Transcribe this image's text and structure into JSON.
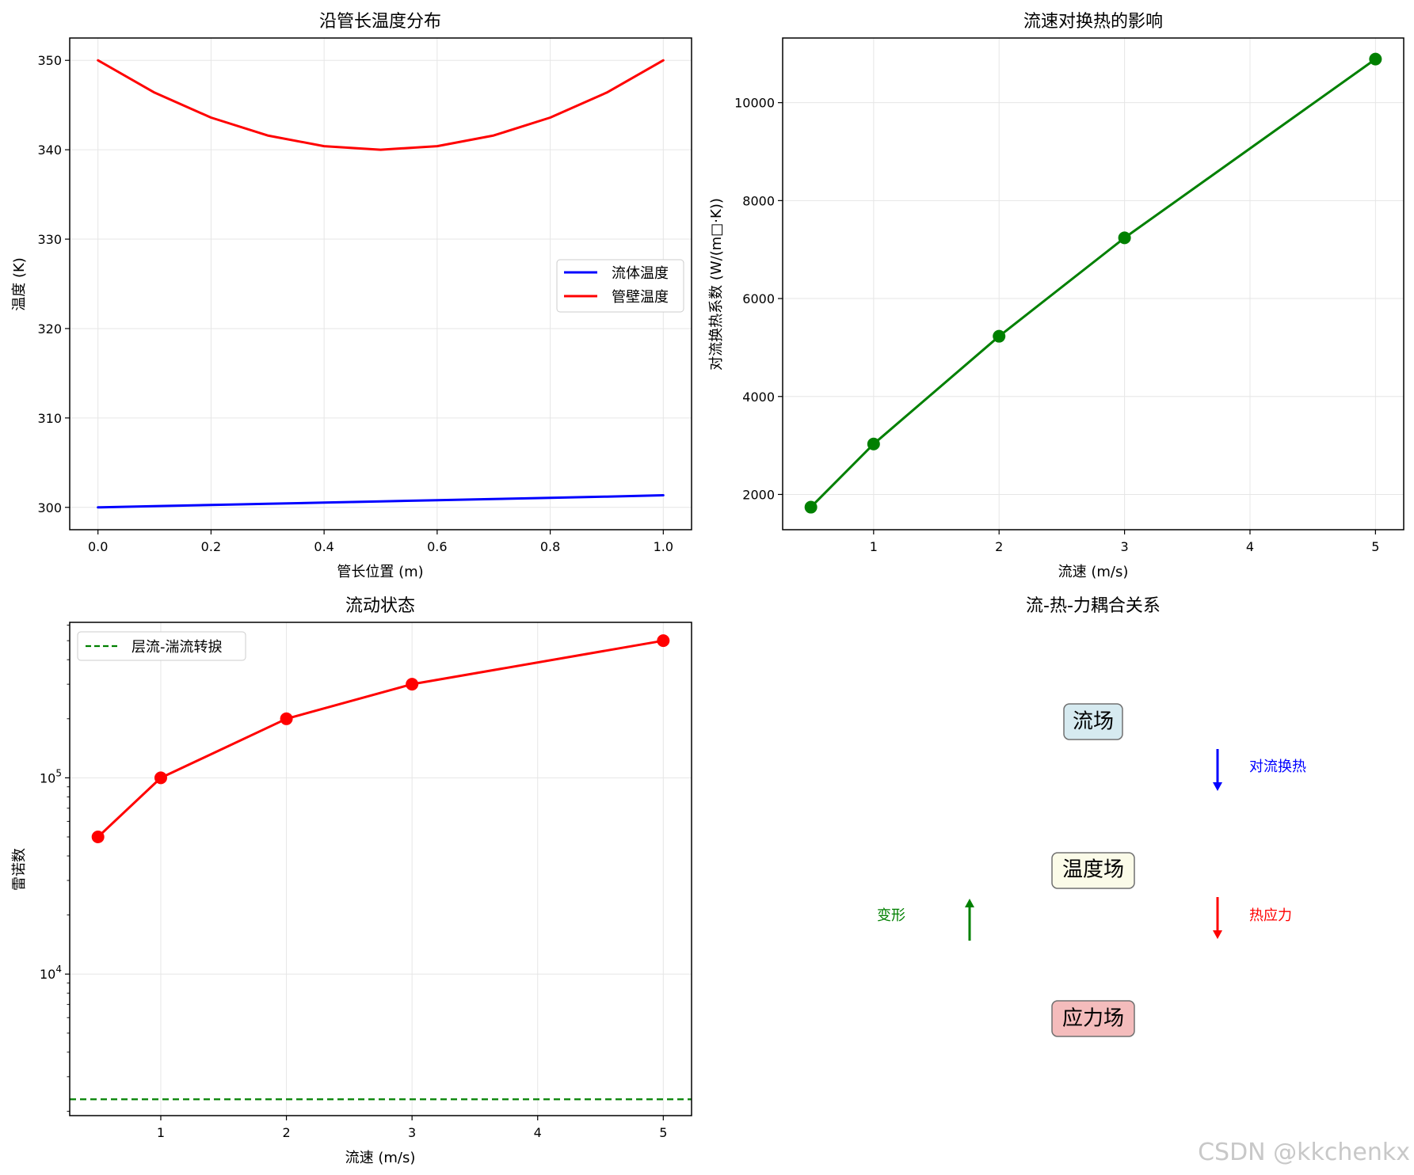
{
  "chart_data": [
    {
      "type": "line",
      "title": "沿管长温度分布",
      "xlabel": "管长位置 (m)",
      "ylabel": "温度 (K)",
      "xlim": [
        -0.05,
        1.05
      ],
      "ylim": [
        297.5,
        352.5
      ],
      "xticks": [
        0.0,
        0.2,
        0.4,
        0.6,
        0.8,
        1.0
      ],
      "xtick_labels": [
        "0.0",
        "0.2",
        "0.4",
        "0.6",
        "0.8",
        "1.0"
      ],
      "yticks": [
        300,
        310,
        320,
        330,
        340,
        350
      ],
      "grid": true,
      "legend": "center-right",
      "series": [
        {
          "name": "流体温度",
          "color": "#0000ff",
          "x": [
            0.0,
            0.1,
            0.2,
            0.3,
            0.4,
            0.5,
            0.6,
            0.7,
            0.8,
            0.9,
            1.0
          ],
          "y": [
            300.0,
            300.13,
            300.26,
            300.4,
            300.53,
            300.67,
            300.8,
            300.93,
            301.07,
            301.2,
            301.35
          ]
        },
        {
          "name": "管壁温度",
          "color": "#ff0000",
          "x": [
            0.0,
            0.1,
            0.2,
            0.3,
            0.4,
            0.5,
            0.6,
            0.7,
            0.8,
            0.9,
            1.0
          ],
          "y": [
            350.0,
            346.4,
            343.6,
            341.6,
            340.4,
            340.0,
            340.4,
            341.6,
            343.6,
            346.4,
            350.0
          ]
        }
      ]
    },
    {
      "type": "line",
      "title": "流速对换热的影响",
      "xlabel": "流速 (m/s)",
      "ylabel": "对流换热系数 (W/(m□·K))",
      "xlim": [
        0.275,
        5.225
      ],
      "ylim": [
        1280,
        11320
      ],
      "xticks": [
        1,
        2,
        3,
        4,
        5
      ],
      "yticks": [
        2000,
        4000,
        6000,
        8000,
        10000
      ],
      "grid": true,
      "series": [
        {
          "color": "#008000",
          "x": [
            0.5,
            1,
            2,
            3,
            5
          ],
          "y": [
            1740,
            3030,
            5230,
            7240,
            10890
          ]
        }
      ]
    },
    {
      "type": "line",
      "title": "流动状态",
      "xlabel": "流速 (m/s)",
      "ylabel": "雷诺数",
      "yscale": "log",
      "xlim": [
        0.275,
        5.225
      ],
      "ylim": [
        1900,
        620000
      ],
      "xticks": [
        1,
        2,
        3,
        4,
        5
      ],
      "yticks": [
        10000,
        100000
      ],
      "ytick_labels": [
        "10^4",
        "10^5"
      ],
      "grid": true,
      "legend": "top-left",
      "series": [
        {
          "color": "#ff0000",
          "x": [
            0.5,
            1,
            2,
            3,
            5
          ],
          "y": [
            50000,
            100000,
            200000,
            300000,
            500000
          ]
        },
        {
          "name": "层流-湍流转捩",
          "color": "#008000",
          "style": "dashed",
          "x": [
            0.275,
            5.225
          ],
          "y": [
            2300,
            2300
          ]
        }
      ]
    }
  ],
  "diagram": {
    "title": "流-热-力耦合关系",
    "boxes": [
      {
        "label": "流场",
        "fill": "#d6eaf0"
      },
      {
        "label": "温度场",
        "fill": "#fbfbe8"
      },
      {
        "label": "应力场",
        "fill": "#f4bcbc"
      }
    ],
    "arrows": [
      {
        "label": "对流换热",
        "color": "#0000ff",
        "direction": "down"
      },
      {
        "label": "热应力",
        "color": "#ff0000",
        "direction": "down"
      },
      {
        "label": "变形",
        "color": "#008000",
        "direction": "up"
      }
    ]
  },
  "watermark": "CSDN @kkchenkx"
}
